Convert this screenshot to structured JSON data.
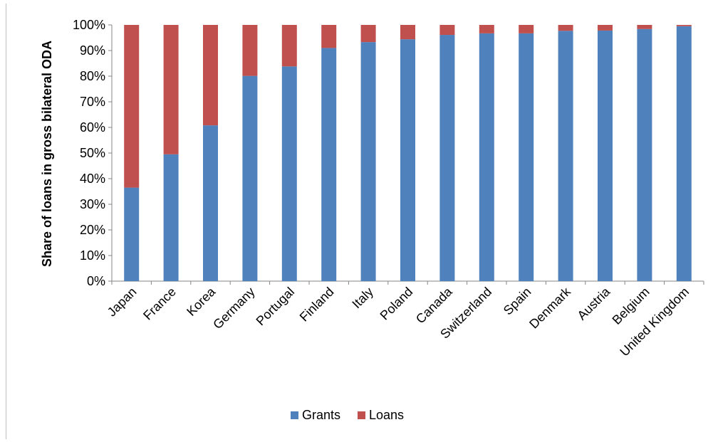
{
  "chart_data": {
    "type": "bar",
    "stacked": true,
    "categories": [
      "Japan",
      "France",
      "Korea",
      "Germany",
      "Portugal",
      "Finland",
      "Italy",
      "Poland",
      "Canada",
      "Switzerland",
      "Spain",
      "Denmark",
      "Austria",
      "Belgium",
      "United Kingdom"
    ],
    "series": [
      {
        "name": "Grants",
        "color": "#4F81BD",
        "values": [
          36.5,
          49.5,
          60.8,
          80.1,
          83.8,
          91.0,
          93.3,
          94.4,
          96.1,
          96.7,
          96.7,
          97.7,
          97.8,
          98.4,
          99.5
        ]
      },
      {
        "name": "Loans",
        "color": "#C0504D",
        "values": [
          63.5,
          50.5,
          39.2,
          19.9,
          16.2,
          9.0,
          6.7,
          5.6,
          3.9,
          3.3,
          3.3,
          2.3,
          2.2,
          1.6,
          0.5
        ]
      }
    ],
    "ylabel": "Share of loans in gross bilateral ODA",
    "xlabel": "",
    "ylim": [
      0,
      100
    ],
    "yticks": [
      "0%",
      "10%",
      "20%",
      "30%",
      "40%",
      "50%",
      "60%",
      "70%",
      "80%",
      "90%",
      "100%"
    ],
    "grid": false,
    "legend_position": "bottom"
  }
}
